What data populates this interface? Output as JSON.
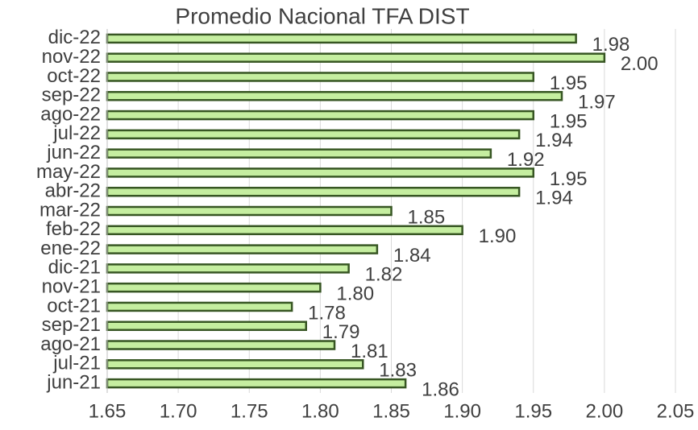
{
  "chart_data": {
    "type": "hbar",
    "title": "Promedio Nacional TFA DIST",
    "categories": [
      "dic-22",
      "nov-22",
      "oct-22",
      "sep-22",
      "ago-22",
      "jul-22",
      "jun-22",
      "may-22",
      "abr-22",
      "mar-22",
      "feb-22",
      "ene-22",
      "dic-21",
      "nov-21",
      "oct-21",
      "sep-21",
      "ago-21",
      "jul-21",
      "jun-21"
    ],
    "values": [
      1.98,
      2.0,
      1.95,
      1.97,
      1.95,
      1.94,
      1.92,
      1.95,
      1.94,
      1.85,
      1.9,
      1.84,
      1.82,
      1.8,
      1.78,
      1.79,
      1.81,
      1.83,
      1.86
    ],
    "value_labels": [
      "1.98",
      "2.00",
      "1.95",
      "1.97",
      "1.95",
      "1.94",
      "1.92",
      "1.95",
      "1.94",
      "1.85",
      "1.90",
      "1.84",
      "1.82",
      "1.80",
      "1.78",
      "1.79",
      "1.81",
      "1.83",
      "1.86"
    ],
    "color": "#c5eea0",
    "border_color": "#375623",
    "xlim": [
      1.65,
      2.05
    ],
    "xticks": [
      1.65,
      {
        "value": 1.7,
        "label": "1.70"
      },
      1.75,
      {
        "value": 1.8,
        "label": "1.80"
      },
      1.85,
      {
        "value": 1.9,
        "label": "1.90"
      },
      1.95,
      {
        "value": 2.0,
        "label": "2.00"
      },
      2.05
    ],
    "grid": true
  }
}
